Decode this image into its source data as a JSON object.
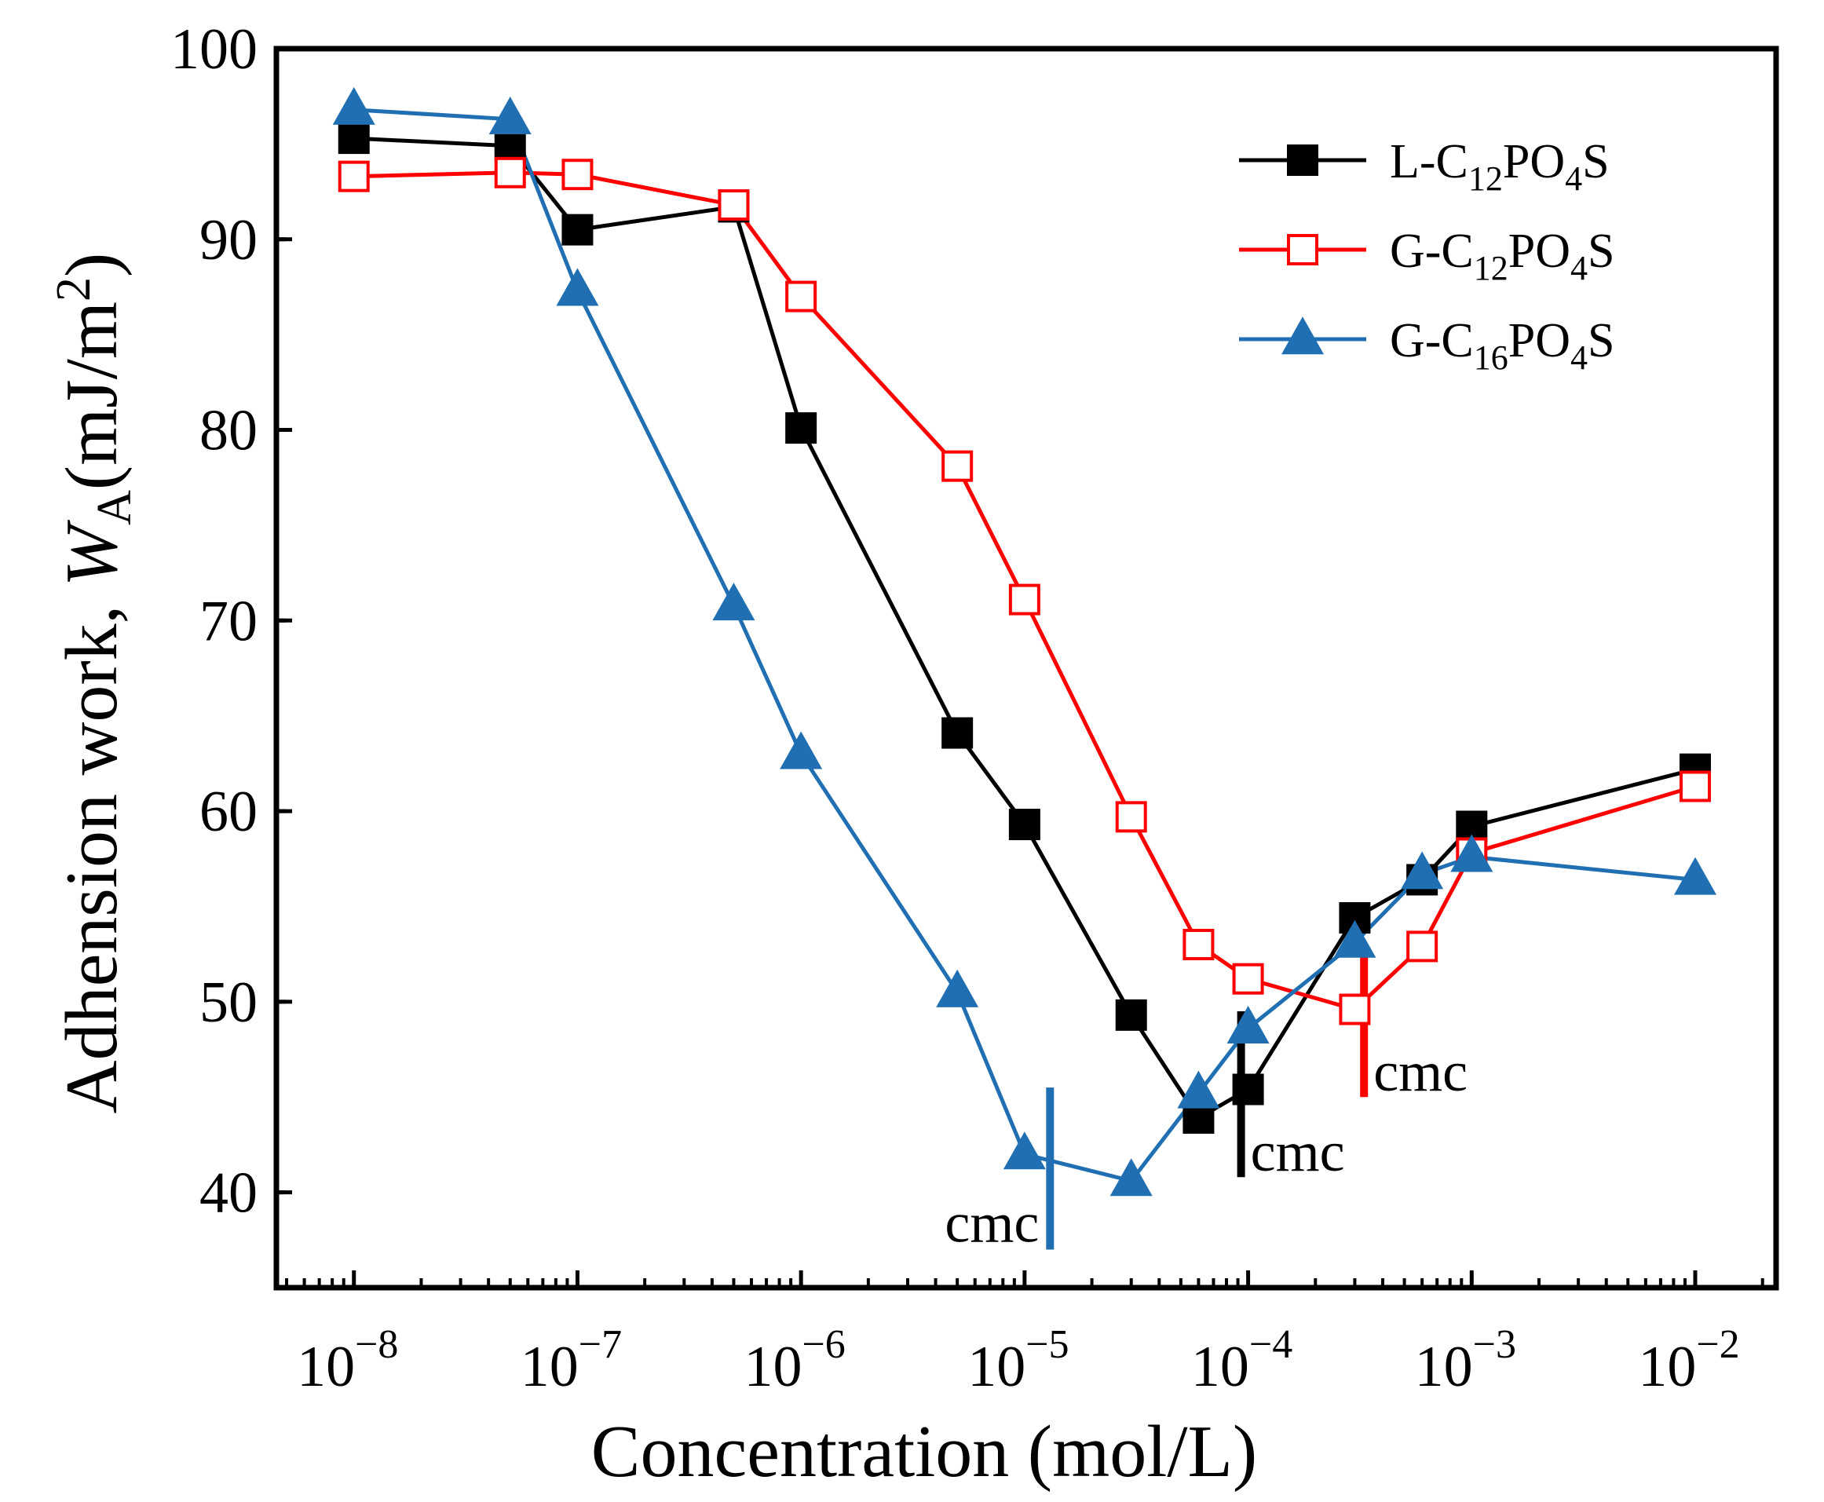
{
  "chart_data": {
    "type": "line",
    "xscale": "log",
    "xlim": [
      4.5e-09,
      0.023
    ],
    "ylim": [
      35,
      100
    ],
    "xlabel": "Concentration (mol/L)",
    "ylabel": {
      "prefix": "Adhension work, ",
      "symbol": "W",
      "subscript": "A",
      "unit_open": "(mJ/m",
      "unit_sup": "2",
      "unit_close": ")"
    },
    "x_ticks": [
      {
        "value": 1e-08,
        "base": "10",
        "exponent": "−8"
      },
      {
        "value": 1e-07,
        "base": "10",
        "exponent": "−7"
      },
      {
        "value": 1e-06,
        "base": "10",
        "exponent": "−6"
      },
      {
        "value": 1e-05,
        "base": "10",
        "exponent": "−5"
      },
      {
        "value": 0.0001,
        "base": "10",
        "exponent": "−4"
      },
      {
        "value": 0.001,
        "base": "10",
        "exponent": "−3"
      },
      {
        "value": 0.01,
        "base": "10",
        "exponent": "−2"
      }
    ],
    "y_ticks": [
      {
        "value": 40,
        "label": "40"
      },
      {
        "value": 50,
        "label": "50"
      },
      {
        "value": 60,
        "label": "60"
      },
      {
        "value": 70,
        "label": "70"
      },
      {
        "value": 80,
        "label": "80"
      },
      {
        "value": 90,
        "label": "90"
      },
      {
        "value": 100,
        "label": "100"
      }
    ],
    "legend_position": "top-right",
    "series": [
      {
        "name": "L-C12PO4S",
        "legend": [
          {
            "t": "L-C"
          },
          {
            "t": "12",
            "sub": true
          },
          {
            "t": "PO"
          },
          {
            "t": "4",
            "sub": true
          },
          {
            "t": "S"
          }
        ],
        "color": "#000000",
        "marker": "filled-square",
        "x": [
          1e-08,
          5e-08,
          1e-07,
          5e-07,
          1e-06,
          5e-06,
          1e-05,
          3e-05,
          6e-05,
          0.0001,
          0.0003,
          0.0006,
          0.001,
          0.01
        ],
        "y": [
          95.3,
          94.9,
          90.5,
          91.7,
          80.1,
          64.1,
          59.3,
          49.3,
          43.9,
          45.4,
          54.4,
          56.4,
          59.2,
          62.2
        ]
      },
      {
        "name": "G-C12PO4S",
        "legend": [
          {
            "t": "G-C"
          },
          {
            "t": "12",
            "sub": true
          },
          {
            "t": "PO"
          },
          {
            "t": "4",
            "sub": true
          },
          {
            "t": "S"
          }
        ],
        "color": "#ff0000",
        "marker": "open-square",
        "x": [
          1e-08,
          5e-08,
          1e-07,
          5e-07,
          1e-06,
          5e-06,
          1e-05,
          3e-05,
          6e-05,
          0.0001,
          0.0003,
          0.0006,
          0.001,
          0.01
        ],
        "y": [
          93.3,
          93.5,
          93.4,
          91.8,
          87.0,
          78.1,
          71.1,
          59.7,
          53.0,
          51.2,
          49.6,
          52.9,
          57.8,
          61.3
        ]
      },
      {
        "name": "G-C16PO4S",
        "legend": [
          {
            "t": "G-C"
          },
          {
            "t": "16",
            "sub": true
          },
          {
            "t": "PO"
          },
          {
            "t": "4",
            "sub": true
          },
          {
            "t": "S"
          }
        ],
        "color": "#1f6fb2",
        "marker": "filled-triangle",
        "x": [
          1e-08,
          5e-08,
          1e-07,
          5e-07,
          1e-06,
          5e-06,
          1e-05,
          3e-05,
          6e-05,
          0.0001,
          0.0003,
          0.0006,
          0.001,
          0.01
        ],
        "y": [
          96.8,
          96.3,
          87.3,
          70.8,
          63.0,
          50.5,
          42.0,
          40.6,
          45.2,
          48.6,
          53.1,
          56.7,
          57.6,
          56.4
        ]
      }
    ],
    "annotations": [
      {
        "text": "cmc",
        "series": "G-C16PO4S",
        "x": 1.3e-05,
        "y_low": 37,
        "y_high": 45.5,
        "label_side": "left",
        "color": "#1f6fb2"
      },
      {
        "text": "cmc",
        "series": "L-C12PO4S",
        "x": 9.3e-05,
        "y_low": 40.8,
        "y_high": 49.5,
        "label_side": "right",
        "color": "#000000"
      },
      {
        "text": "cmc",
        "series": "G-C12PO4S",
        "x": 0.00033,
        "y_low": 45,
        "y_high": 53,
        "label_side": "right",
        "color": "#ff0000"
      }
    ]
  }
}
